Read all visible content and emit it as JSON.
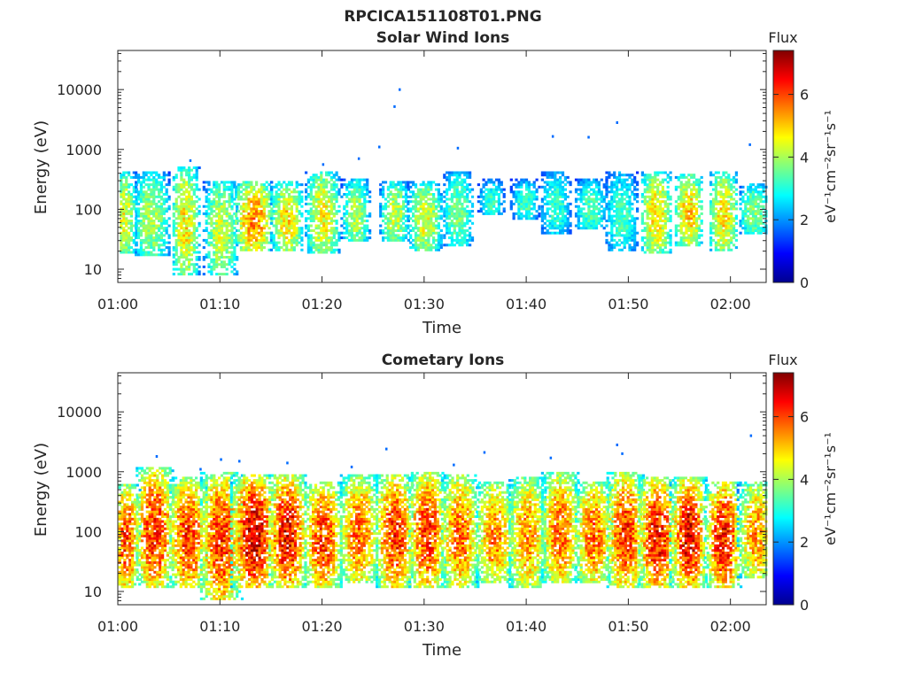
{
  "figure": {
    "title": "RPCICA151108T01.PNG"
  },
  "chart_data": [
    {
      "type": "heatmap",
      "title": "Solar Wind Ions",
      "xlabel": "Time",
      "ylabel": "Energy (eV)",
      "x_ticks": [
        "01:00",
        "01:10",
        "01:20",
        "01:30",
        "01:40",
        "01:50",
        "02:00"
      ],
      "x_range_minutes": [
        0,
        63.5
      ],
      "y_scale": "log",
      "y_ticks": [
        10,
        100,
        1000,
        10000
      ],
      "y_tick_labels": [
        "10",
        "100",
        "1000",
        "10000"
      ],
      "y_range": [
        6,
        45000
      ],
      "colorbar": {
        "label": "Flux",
        "units": "eV⁻¹cm⁻²sr⁻¹s⁻¹",
        "range": [
          0,
          7.4
        ],
        "ticks": [
          0,
          2,
          4,
          6
        ],
        "colormap": "jet"
      },
      "bursts": [
        {
          "t": 0.5,
          "lo": 18,
          "hi": 420,
          "peak": 4.6,
          "width": 1.3
        },
        {
          "t": 3.2,
          "lo": 16,
          "hi": 420,
          "peak": 4.2,
          "width": 1.8
        },
        {
          "t": 6.5,
          "lo": 8,
          "hi": 520,
          "peak": 4.9,
          "width": 1.4
        },
        {
          "t": 10.0,
          "lo": 8,
          "hi": 300,
          "peak": 4.4,
          "width": 1.7
        },
        {
          "t": 13.2,
          "lo": 20,
          "hi": 300,
          "peak": 5.6,
          "width": 2.0
        },
        {
          "t": 16.5,
          "lo": 20,
          "hi": 300,
          "peak": 5.0,
          "width": 1.6
        },
        {
          "t": 20.0,
          "lo": 18,
          "hi": 450,
          "peak": 4.8,
          "width": 1.7
        },
        {
          "t": 23.2,
          "lo": 28,
          "hi": 320,
          "peak": 4.2,
          "width": 1.4
        },
        {
          "t": 27.0,
          "lo": 30,
          "hi": 300,
          "peak": 4.4,
          "width": 1.4
        },
        {
          "t": 30.0,
          "lo": 20,
          "hi": 300,
          "peak": 4.6,
          "width": 1.7
        },
        {
          "t": 33.2,
          "lo": 25,
          "hi": 420,
          "peak": 3.8,
          "width": 1.6
        },
        {
          "t": 36.5,
          "lo": 80,
          "hi": 320,
          "peak": 3.3,
          "width": 1.3
        },
        {
          "t": 39.8,
          "lo": 70,
          "hi": 320,
          "peak": 3.4,
          "width": 1.4
        },
        {
          "t": 42.8,
          "lo": 40,
          "hi": 450,
          "peak": 3.3,
          "width": 1.6
        },
        {
          "t": 46.2,
          "lo": 45,
          "hi": 320,
          "peak": 3.5,
          "width": 1.7
        },
        {
          "t": 49.2,
          "lo": 20,
          "hi": 420,
          "peak": 3.4,
          "width": 1.7
        },
        {
          "t": 52.6,
          "lo": 18,
          "hi": 450,
          "peak": 5.0,
          "width": 1.6
        },
        {
          "t": 55.8,
          "lo": 25,
          "hi": 400,
          "peak": 5.1,
          "width": 1.5
        },
        {
          "t": 59.2,
          "lo": 20,
          "hi": 420,
          "peak": 5.0,
          "width": 1.5
        },
        {
          "t": 62.2,
          "lo": 40,
          "hi": 280,
          "peak": 3.9,
          "width": 1.6
        }
      ],
      "scatter_points": [
        [
          25.5,
          1100
        ],
        [
          27.5,
          10000
        ],
        [
          27.0,
          5200
        ],
        [
          33.2,
          1050
        ],
        [
          42.5,
          1650
        ],
        [
          46.0,
          1600
        ],
        [
          48.8,
          2800
        ],
        [
          61.8,
          1200
        ],
        [
          7.0,
          650
        ],
        [
          23.5,
          700
        ],
        [
          20.0,
          560
        ]
      ]
    },
    {
      "type": "heatmap",
      "title": "Cometary Ions",
      "xlabel": "Time",
      "ylabel": "Energy (eV)",
      "x_ticks": [
        "01:00",
        "01:10",
        "01:20",
        "01:30",
        "01:40",
        "01:50",
        "02:00"
      ],
      "x_range_minutes": [
        0,
        63.5
      ],
      "y_scale": "log",
      "y_ticks": [
        10,
        100,
        1000,
        10000
      ],
      "y_tick_labels": [
        "10",
        "100",
        "1000",
        "10000"
      ],
      "y_range": [
        6,
        45000
      ],
      "colorbar": {
        "label": "Flux",
        "units": "eV⁻¹cm⁻²sr⁻¹s⁻¹",
        "range": [
          0,
          7.4
        ],
        "ticks": [
          0,
          2,
          4,
          6
        ],
        "colormap": "jet"
      },
      "bursts": [
        {
          "t": 0.7,
          "lo": 12,
          "hi": 600,
          "peak": 6.2,
          "width": 1.4
        },
        {
          "t": 3.5,
          "lo": 12,
          "hi": 1200,
          "peak": 6.4,
          "width": 2.0
        },
        {
          "t": 6.8,
          "lo": 12,
          "hi": 800,
          "peak": 6.3,
          "width": 2.0
        },
        {
          "t": 10.0,
          "lo": 7,
          "hi": 1000,
          "peak": 6.3,
          "width": 2.2
        },
        {
          "t": 13.2,
          "lo": 12,
          "hi": 900,
          "peak": 7.0,
          "width": 2.2
        },
        {
          "t": 16.5,
          "lo": 12,
          "hi": 900,
          "peak": 6.7,
          "width": 2.0
        },
        {
          "t": 20.0,
          "lo": 12,
          "hi": 700,
          "peak": 6.3,
          "width": 2.0
        },
        {
          "t": 23.5,
          "lo": 14,
          "hi": 900,
          "peak": 5.9,
          "width": 2.0
        },
        {
          "t": 27.0,
          "lo": 12,
          "hi": 900,
          "peak": 6.4,
          "width": 2.0
        },
        {
          "t": 30.2,
          "lo": 12,
          "hi": 1000,
          "peak": 6.3,
          "width": 2.0
        },
        {
          "t": 33.4,
          "lo": 12,
          "hi": 900,
          "peak": 5.9,
          "width": 2.0
        },
        {
          "t": 36.8,
          "lo": 14,
          "hi": 700,
          "peak": 5.7,
          "width": 2.0
        },
        {
          "t": 40.0,
          "lo": 12,
          "hi": 800,
          "peak": 5.6,
          "width": 2.0
        },
        {
          "t": 43.2,
          "lo": 14,
          "hi": 1000,
          "peak": 5.9,
          "width": 2.0
        },
        {
          "t": 46.5,
          "lo": 14,
          "hi": 700,
          "peak": 5.9,
          "width": 2.0
        },
        {
          "t": 49.6,
          "lo": 12,
          "hi": 1000,
          "peak": 6.3,
          "width": 2.0
        },
        {
          "t": 52.7,
          "lo": 12,
          "hi": 800,
          "peak": 6.6,
          "width": 2.0
        },
        {
          "t": 55.8,
          "lo": 12,
          "hi": 800,
          "peak": 6.8,
          "width": 1.8
        },
        {
          "t": 59.2,
          "lo": 12,
          "hi": 700,
          "peak": 6.6,
          "width": 1.8
        },
        {
          "t": 62.4,
          "lo": 16,
          "hi": 700,
          "peak": 5.6,
          "width": 1.8
        }
      ],
      "scatter_points": [
        [
          3.7,
          1800
        ],
        [
          10.0,
          1600
        ],
        [
          11.8,
          1500
        ],
        [
          16.5,
          1400
        ],
        [
          26.2,
          2400
        ],
        [
          32.8,
          1300
        ],
        [
          35.8,
          2100
        ],
        [
          42.3,
          1700
        ],
        [
          48.8,
          2800
        ],
        [
          49.3,
          2000
        ],
        [
          61.9,
          4000
        ],
        [
          8.0,
          1100
        ],
        [
          22.8,
          1200
        ]
      ]
    }
  ]
}
